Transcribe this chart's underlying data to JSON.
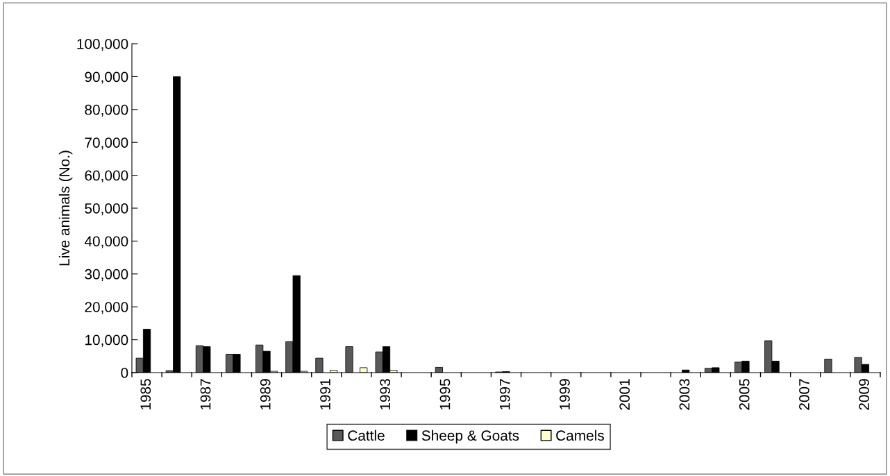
{
  "chart_data": {
    "type": "bar",
    "ylabel": "Live animals (No.)",
    "categories": [
      "1985",
      null,
      "1987",
      null,
      "1989",
      null,
      "1991",
      null,
      "1993",
      null,
      "1995",
      null,
      "1997",
      null,
      "1999",
      null,
      "2001",
      null,
      "2003",
      null,
      "2005",
      null,
      "2007",
      null,
      "2009"
    ],
    "series": [
      {
        "name": "Cattle",
        "color": "#595959",
        "values": [
          4400,
          600,
          8200,
          5600,
          8400,
          9400,
          4400,
          7900,
          6300,
          null,
          1600,
          null,
          200,
          null,
          null,
          null,
          null,
          null,
          null,
          1300,
          3200,
          9700,
          null,
          4100,
          4600
        ]
      },
      {
        "name": "Sheep & Goats",
        "color": "#000000",
        "values": [
          13200,
          90000,
          7900,
          5600,
          6500,
          29500,
          null,
          null,
          7900,
          null,
          null,
          null,
          300,
          null,
          null,
          null,
          null,
          null,
          800,
          1500,
          3500,
          3500,
          null,
          null,
          2500
        ]
      },
      {
        "name": "Camels",
        "color": "#ffffcc",
        "values": [
          null,
          null,
          null,
          null,
          400,
          400,
          700,
          1500,
          700,
          null,
          null,
          null,
          null,
          null,
          null,
          null,
          null,
          null,
          null,
          null,
          null,
          null,
          null,
          null,
          null
        ]
      }
    ],
    "ylim": [
      0,
      100000
    ],
    "yticks": [
      {
        "value": 0,
        "label": "0"
      },
      {
        "value": 10000,
        "label": "10,000"
      },
      {
        "value": 20000,
        "label": "20,000"
      },
      {
        "value": 30000,
        "label": "30,000"
      },
      {
        "value": 40000,
        "label": "40,000"
      },
      {
        "value": 50000,
        "label": "50,000"
      },
      {
        "value": 60000,
        "label": "60,000"
      },
      {
        "value": 70000,
        "label": "70,000"
      },
      {
        "value": 80000,
        "label": "80,000"
      },
      {
        "value": 90000,
        "label": "90,000"
      },
      {
        "value": 100000,
        "label": "100,000"
      }
    ],
    "grid": false,
    "legend": "bottom"
  }
}
